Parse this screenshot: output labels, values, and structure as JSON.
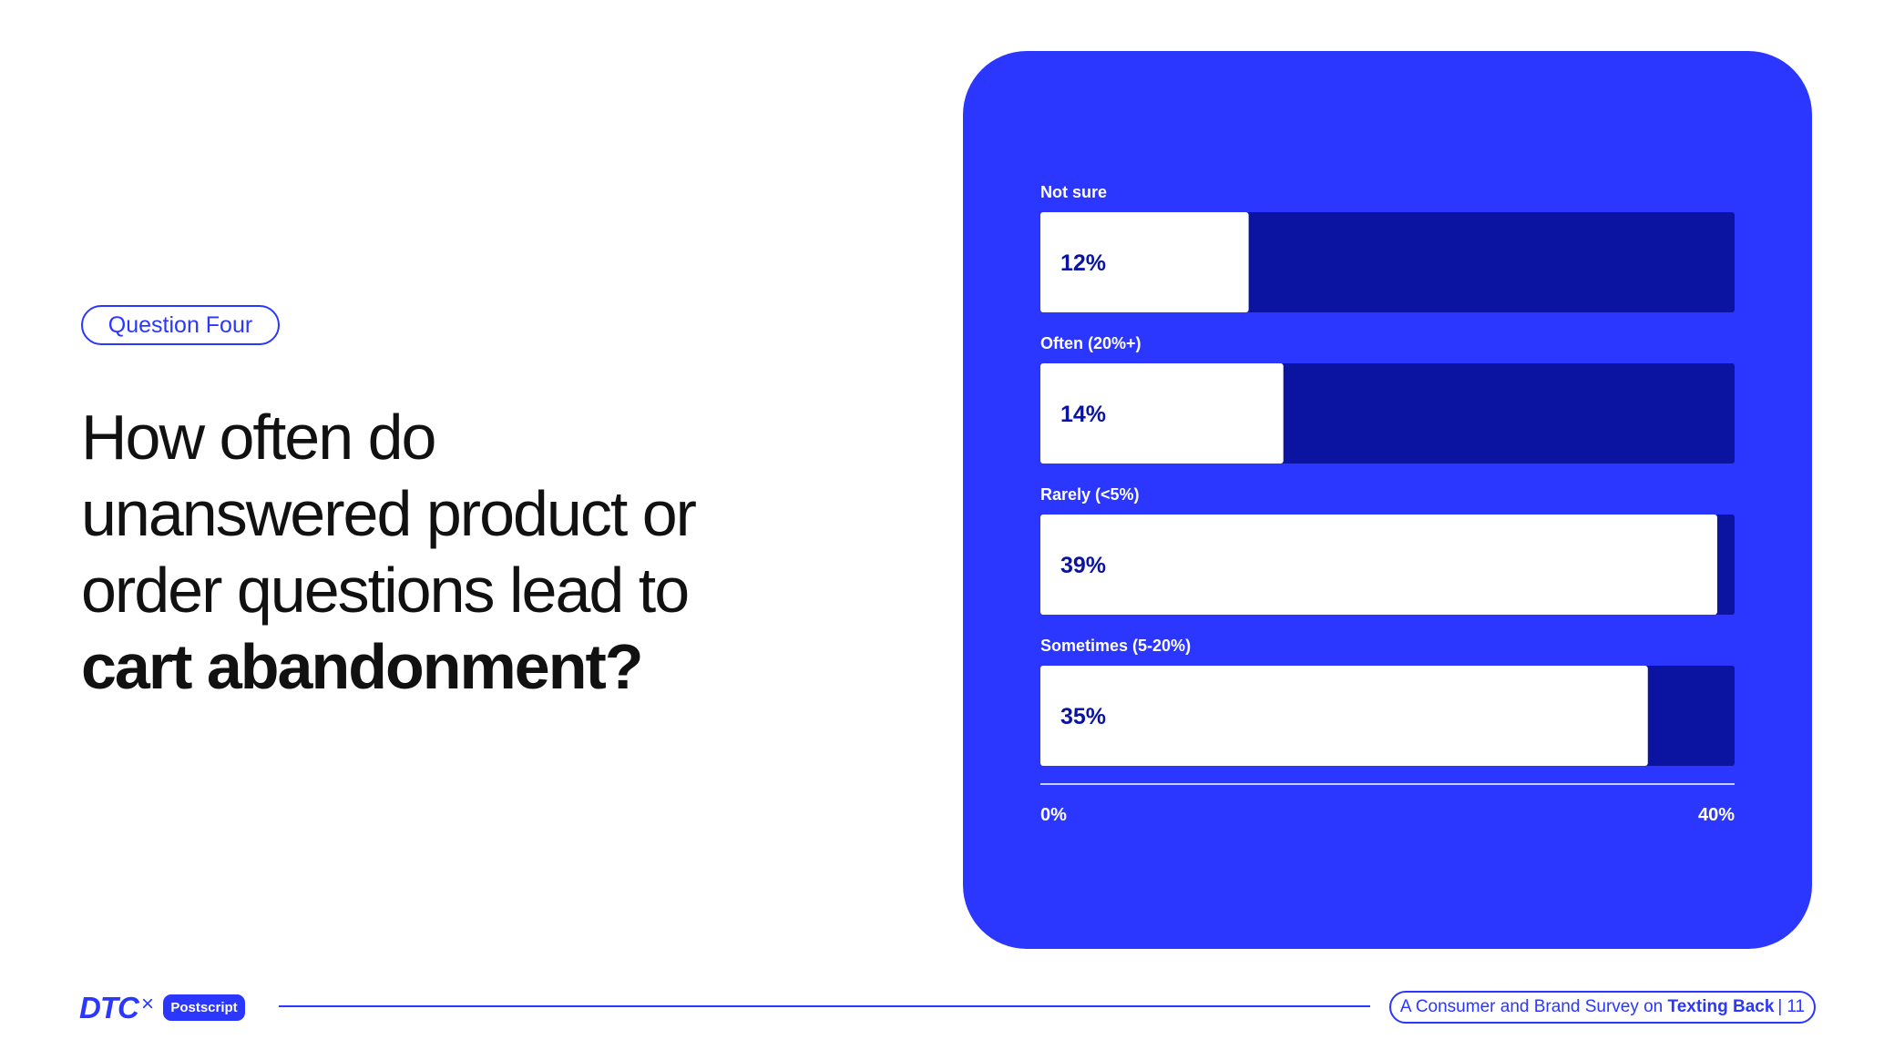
{
  "header": {
    "badge": "Question Four",
    "title_lines": [
      "How often do",
      "unanswered product or",
      "order questions lead to"
    ],
    "title_bold": "cart abandonment?"
  },
  "chart_data": {
    "type": "bar",
    "orientation": "horizontal",
    "categories": [
      "Not sure",
      "Often (20%+)",
      "Rarely (<5%)",
      "Sometimes (5-20%)"
    ],
    "values": [
      12,
      14,
      39,
      35
    ],
    "value_labels": [
      "12%",
      "14%",
      "39%",
      "35%"
    ],
    "xlim": [
      0,
      40
    ],
    "x_tick_labels": [
      "0%",
      "40%"
    ],
    "title": "",
    "xlabel": "",
    "ylabel": "",
    "grid": false,
    "legend": "none"
  },
  "footer": {
    "logo_dtc": "DTC",
    "logo_x": "×",
    "logo_postscript": "Postscript",
    "survey_prefix": "A Consumer and Brand Survey on",
    "survey_bold": "Texting Back",
    "separator": "|",
    "page_number": "11"
  },
  "colors": {
    "accent": "#2b36ff",
    "bar_track": "#0b14a0",
    "bar_fill": "#ffffff",
    "value_text": "#0b14a0",
    "headline": "#111111"
  }
}
